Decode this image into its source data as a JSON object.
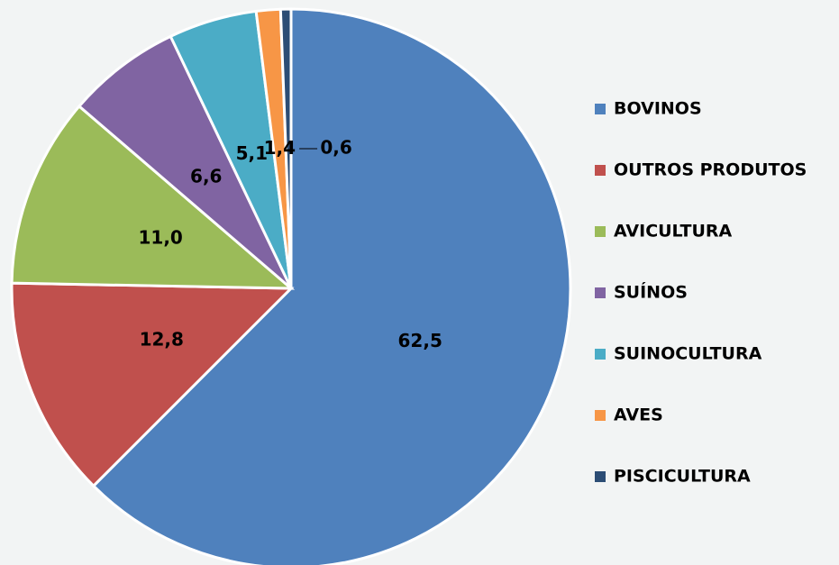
{
  "chart_data": {
    "type": "pie",
    "categories": [
      "BOVINOS",
      "OUTROS PRODUTOS",
      "AVICULTURA",
      "SUÍNOS",
      "SUINOCULTURA",
      "AVES",
      "PISCICULTURA"
    ],
    "values": [
      62.5,
      12.8,
      11.0,
      6.6,
      5.1,
      1.4,
      0.6
    ],
    "value_labels": [
      "62,5",
      "12,8",
      "11,0",
      "6,6",
      "5,1",
      "1,4",
      "0,6"
    ],
    "colors": [
      "#4f81bd",
      "#c0504d",
      "#9bbb59",
      "#8064a2",
      "#4bacc6",
      "#f79646",
      "#2c4d75"
    ],
    "legend": "right"
  }
}
